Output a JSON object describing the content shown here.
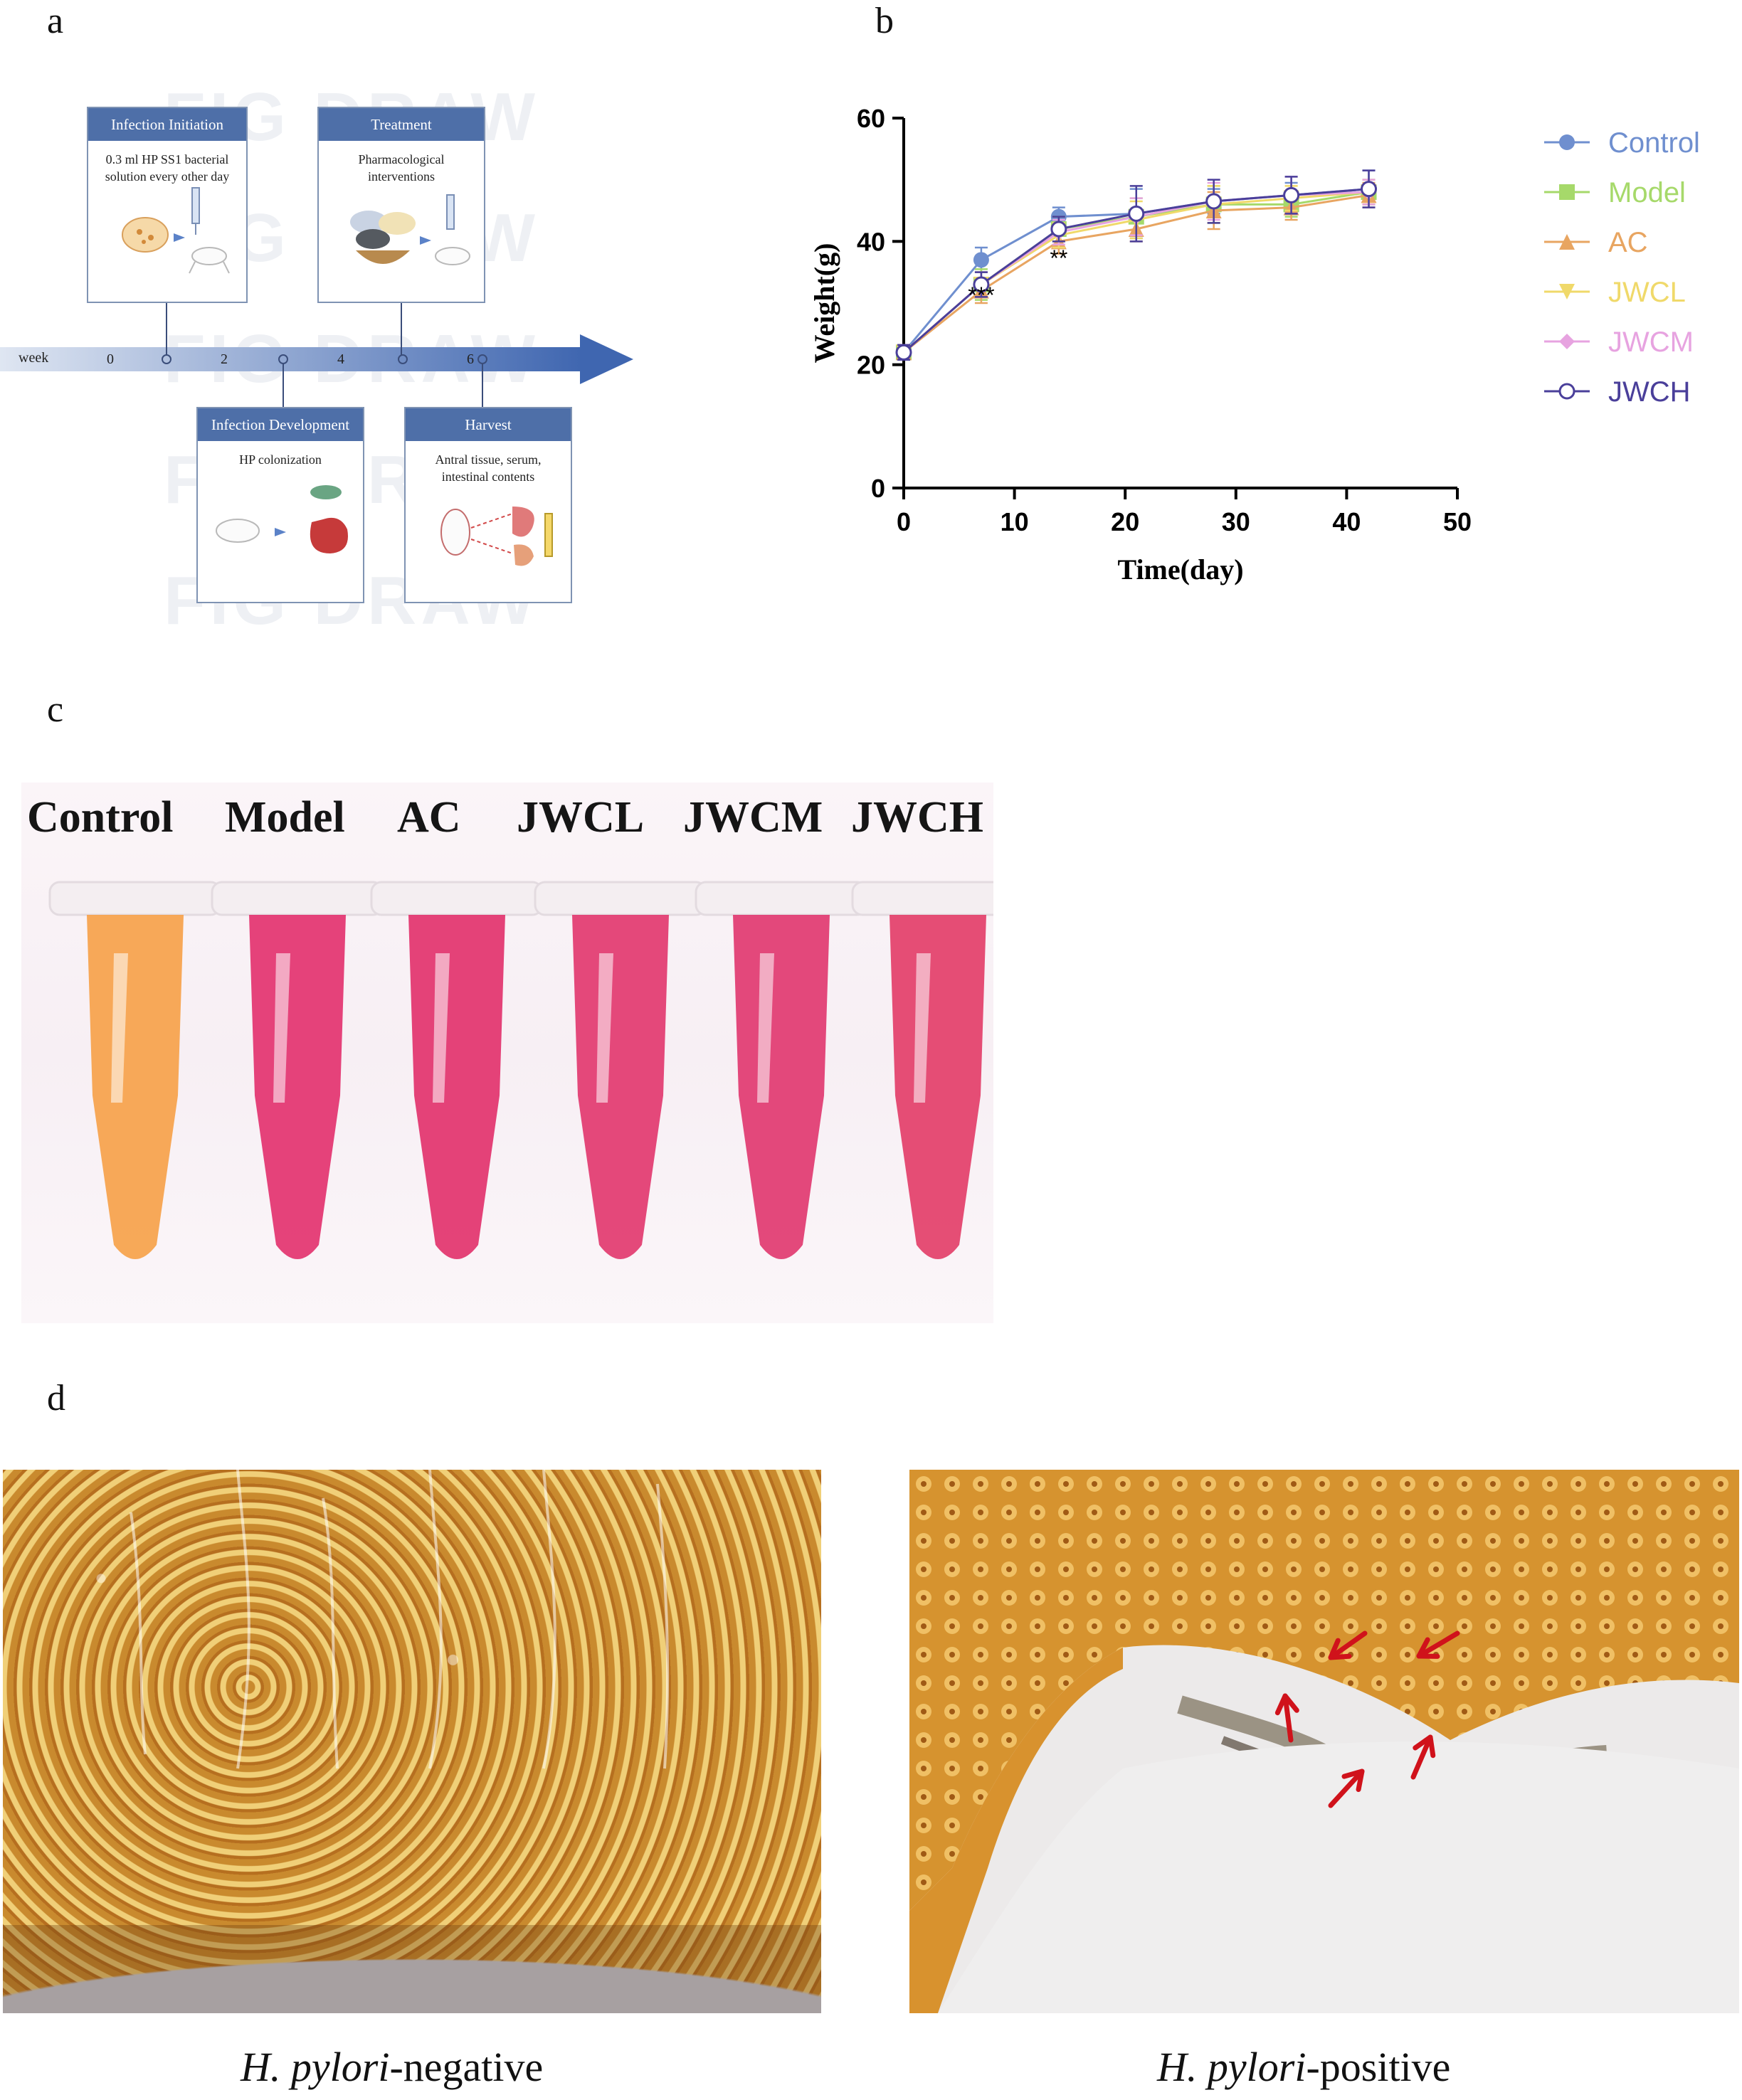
{
  "panels": {
    "a": "a",
    "b": "b",
    "c": "c",
    "d": "d"
  },
  "panel_a": {
    "timeline": {
      "axis_label": "week",
      "ticks": [
        "0",
        "2",
        "4",
        "6"
      ]
    },
    "steps": [
      {
        "title": "Infection Initiation",
        "text_line1": "0.3 ml HP SS1 bacterial",
        "text_line2": "solution every other day"
      },
      {
        "title": "Treatment",
        "text_line1": "Pharmacological",
        "text_line2": "interventions"
      },
      {
        "title": "Infection Development",
        "text_line1": "HP colonization",
        "text_line2": ""
      },
      {
        "title": "Harvest",
        "text_line1": "Antral tissue, serum,",
        "text_line2": "intestinal contents"
      }
    ],
    "watermark_text": "FIG DRAW",
    "arrow_color": "#3f66b0"
  },
  "chart_data": {
    "type": "line",
    "title": "",
    "xlabel": "Time(day)",
    "ylabel": "Weight(g)",
    "xlim": [
      0,
      50
    ],
    "ylim": [
      0,
      60
    ],
    "xticks": [
      "0",
      "10",
      "20",
      "30",
      "40",
      "50"
    ],
    "yticks": [
      "0",
      "20",
      "40",
      "60"
    ],
    "x": [
      0,
      7,
      14,
      21,
      28,
      35,
      42
    ],
    "grid": false,
    "legend_position": "right",
    "annotations": [
      {
        "text": "***",
        "x": 7,
        "y": 30
      },
      {
        "text": "**",
        "x": 14,
        "y": 36
      }
    ],
    "series": [
      {
        "name": "Control",
        "marker": "circle",
        "color": "#6f8fcf",
        "values": [
          22,
          37,
          44,
          44.5,
          46.5,
          47.5,
          48.5
        ],
        "errors": [
          1.2,
          2,
          1.5,
          4,
          2,
          2,
          3
        ]
      },
      {
        "name": "Model",
        "marker": "square",
        "color": "#a6d96a",
        "values": [
          22,
          33,
          42,
          44,
          46,
          46,
          48
        ],
        "errors": [
          1.2,
          2.5,
          2,
          3,
          3,
          2,
          2
        ]
      },
      {
        "name": "AC",
        "marker": "triangle",
        "color": "#e8a561",
        "values": [
          22,
          32,
          40,
          42,
          45,
          45.5,
          47.5
        ],
        "errors": [
          1.2,
          2,
          2,
          2,
          3,
          2,
          2
        ]
      },
      {
        "name": "JWCL",
        "marker": "triangle-down",
        "color": "#f0d96a",
        "values": [
          22,
          33,
          41,
          43.5,
          46,
          47,
          48
        ],
        "errors": [
          1.2,
          2,
          2,
          3,
          3,
          2,
          2
        ]
      },
      {
        "name": "JWCM",
        "marker": "diamond",
        "color": "#e7a3e0",
        "values": [
          22,
          33,
          41.5,
          44,
          46.5,
          47.5,
          48
        ],
        "errors": [
          1.2,
          2,
          2,
          3,
          3,
          3,
          2
        ]
      },
      {
        "name": "JWCH",
        "marker": "circle-open",
        "color": "#4a3f9a",
        "values": [
          22,
          33,
          42,
          44.5,
          46.5,
          47.5,
          48.5
        ],
        "errors": [
          1.2,
          2,
          2,
          4.5,
          3.5,
          3,
          3
        ]
      }
    ]
  },
  "panel_c": {
    "tube_labels": [
      "Control",
      "Model",
      "AC",
      "JWCL",
      "JWCM",
      "JWCH"
    ],
    "tube_colors": [
      "#f6a24a",
      "#e3336f",
      "#e2336d",
      "#e2396f",
      "#e13a70",
      "#e33f69"
    ]
  },
  "panel_d": {
    "left_caption_italic": "H. pylori",
    "left_caption_rest": "-negative",
    "right_caption_italic": "H. pylori",
    "right_caption_rest": "-positive",
    "arrow_color": "#d0121b"
  }
}
